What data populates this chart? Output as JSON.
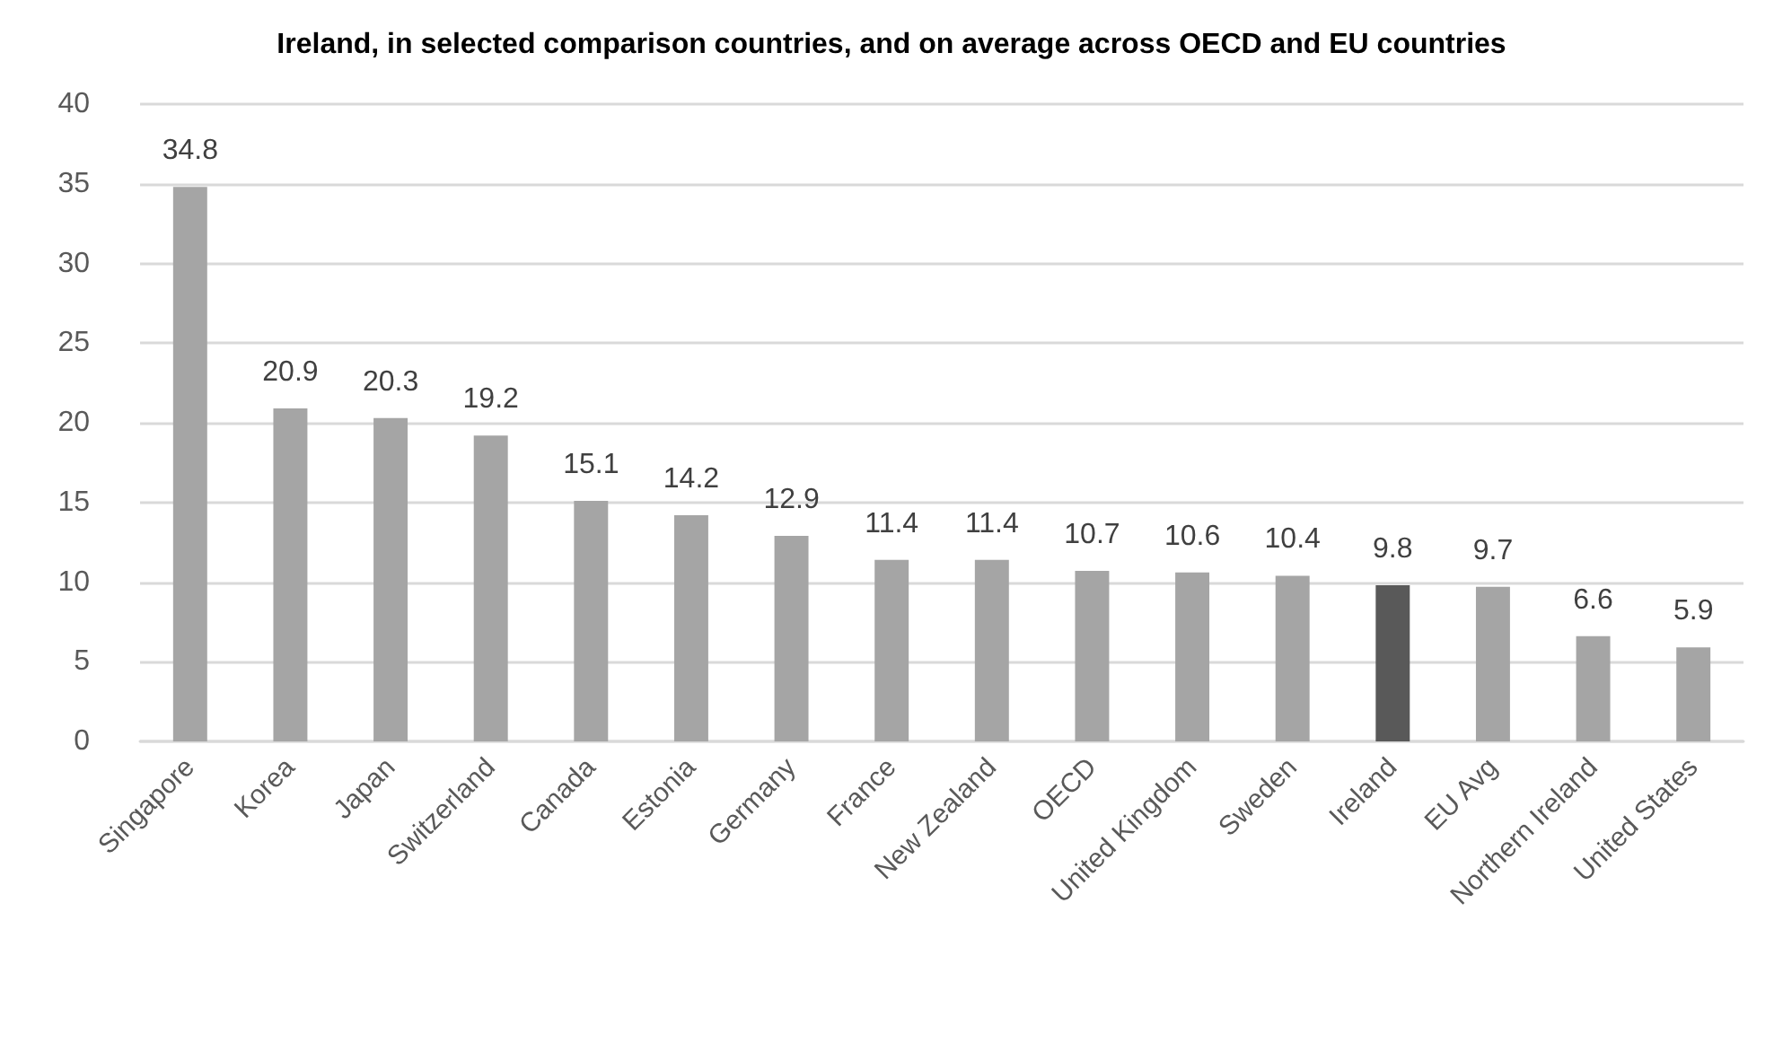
{
  "chart_data": {
    "type": "bar",
    "title": "Ireland, in selected comparison countries, and on average across OECD and EU countries",
    "categories": [
      "Singapore",
      "Korea",
      "Japan",
      "Switzerland",
      "Canada",
      "Estonia",
      "Germany",
      "France",
      "New Zealand",
      "OECD",
      "United Kingdom",
      "Sweden",
      "Ireland",
      "EU Avg",
      "Northern Ireland",
      "United States"
    ],
    "values": [
      34.8,
      20.9,
      20.3,
      19.2,
      15.1,
      14.2,
      12.9,
      11.4,
      11.4,
      10.7,
      10.6,
      10.4,
      9.8,
      9.7,
      6.6,
      5.9
    ],
    "colors": [
      "#a5a5a5",
      "#a5a5a5",
      "#a5a5a5",
      "#a5a5a5",
      "#a5a5a5",
      "#a5a5a5",
      "#a5a5a5",
      "#a5a5a5",
      "#a5a5a5",
      "#a5a5a5",
      "#a5a5a5",
      "#a5a5a5",
      "#595959",
      "#a5a5a5",
      "#a5a5a5",
      "#a5a5a5"
    ],
    "ylim": [
      0,
      40
    ],
    "yticks": [
      0,
      5,
      10,
      15,
      20,
      25,
      30,
      35,
      40
    ],
    "grid": "y",
    "data_labels": true
  }
}
